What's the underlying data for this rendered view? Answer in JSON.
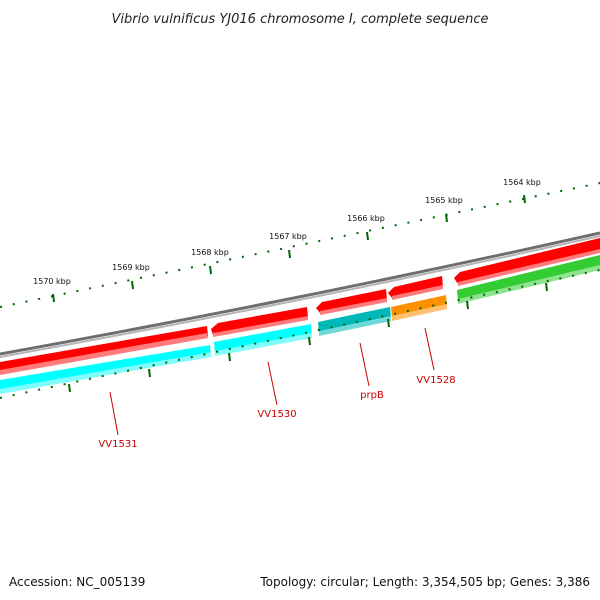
{
  "title": "Vibrio vulnificus YJ016 chromosome I, complete sequence",
  "footer": {
    "accession": "Accession: NC_005139",
    "summary": "Topology: circular; Length: 3,354,505 bp; Genes: 3,386"
  },
  "scale_labels": [
    "1570 kbp",
    "1569 kbp",
    "1568 kbp",
    "1567 kbp",
    "1566 kbp",
    "1565 kbp",
    "1564 kbp"
  ],
  "genes": [
    {
      "label": "VV1531",
      "color": "#00e5ee"
    },
    {
      "label": "VV1530",
      "color": "#00e5ee"
    },
    {
      "label": "prpB",
      "color": "#00b8b8"
    },
    {
      "label": "VV1528",
      "color": "#ff9100"
    }
  ],
  "colors": {
    "backbone": "#808080",
    "forward_cds": "#ff0000",
    "reverse_cds": "#00ffff",
    "gc_bar": "#33cc33",
    "ticks": "#006400",
    "label": "#cc0000"
  }
}
